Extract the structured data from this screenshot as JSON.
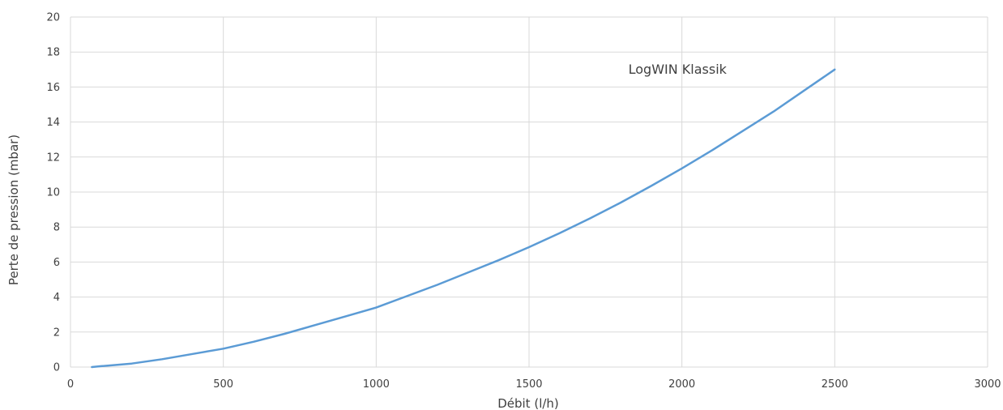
{
  "chart_data": {
    "type": "line",
    "title": "",
    "xlabel": "Débit (l/h)",
    "ylabel": "Perte de pression (mbar)",
    "xlim": [
      0,
      3000
    ],
    "ylim": [
      0,
      20
    ],
    "xticks": [
      0,
      500,
      1000,
      1500,
      2000,
      2500,
      3000
    ],
    "yticks": [
      0,
      2,
      4,
      6,
      8,
      10,
      12,
      14,
      16,
      18,
      20
    ],
    "grid": true,
    "legend": "none",
    "series": [
      {
        "name": "LogWIN Klassik",
        "color": "#5b9bd5",
        "x": [
          70,
          100,
          200,
          300,
          400,
          500,
          600,
          700,
          800,
          900,
          1000,
          1100,
          1200,
          1300,
          1400,
          1500,
          1600,
          1700,
          1800,
          1900,
          2000,
          2100,
          2200,
          2300,
          2400,
          2500
        ],
        "y": [
          0.0,
          0.05,
          0.2,
          0.45,
          0.75,
          1.05,
          1.45,
          1.9,
          2.4,
          2.9,
          3.4,
          4.05,
          4.7,
          5.4,
          6.1,
          6.85,
          7.65,
          8.5,
          9.4,
          10.35,
          11.35,
          12.4,
          13.5,
          14.6,
          15.8,
          17.0
        ]
      }
    ],
    "annotations": [
      {
        "text": "LogWIN Klassik",
        "x": 1825,
        "y": 16.75
      }
    ]
  }
}
